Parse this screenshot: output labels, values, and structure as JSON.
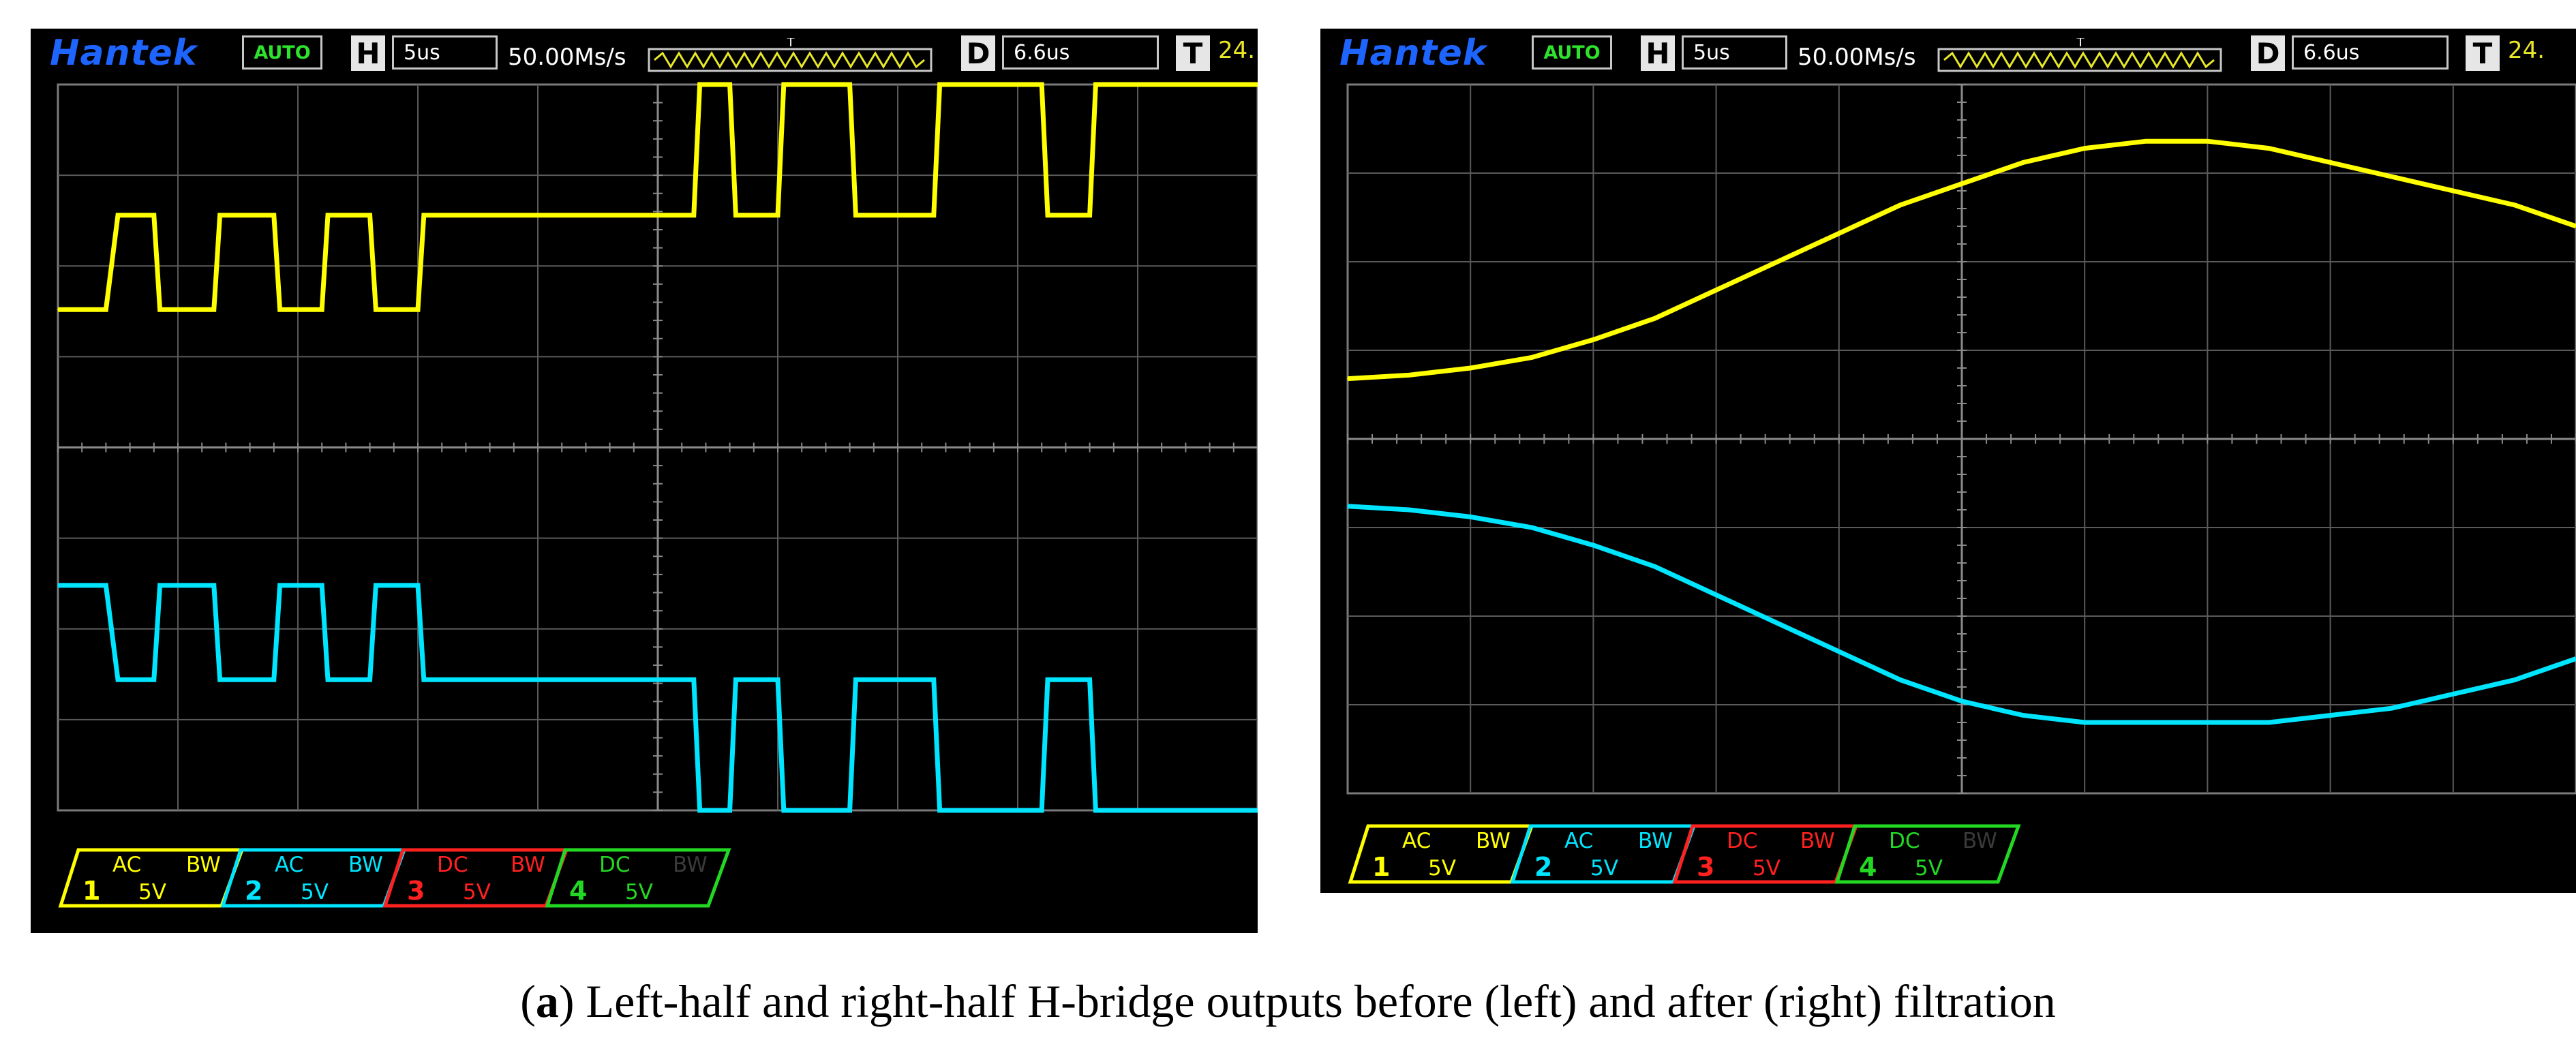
{
  "scopes": [
    {
      "brand": "Hantek",
      "mode": "AUTO",
      "h_letter": "H",
      "h_value": "5us",
      "sample_rate": "50.00Ms/s",
      "trigger_marker": "T",
      "d_letter": "D",
      "d_value": "6.6us",
      "t_letter": "T",
      "t_value": "24.",
      "channels": [
        {
          "num": "1",
          "coupling": "AC",
          "bw": "BW",
          "volts": "5V",
          "color": "#ffff00"
        },
        {
          "num": "2",
          "coupling": "AC",
          "bw": "BW",
          "volts": "5V",
          "color": "#00e5ff"
        },
        {
          "num": "3",
          "coupling": "DC",
          "bw": "BW",
          "volts": "5V",
          "color": "#ff2020"
        },
        {
          "num": "4",
          "coupling": "DC",
          "bw": "BW",
          "volts": "5V",
          "color": "#22d822"
        }
      ]
    },
    {
      "brand": "Hantek",
      "mode": "AUTO",
      "h_letter": "H",
      "h_value": "5us",
      "sample_rate": "50.00Ms/s",
      "trigger_marker": "T",
      "d_letter": "D",
      "d_value": "6.6us",
      "t_letter": "T",
      "t_value": "24.",
      "channels": [
        {
          "num": "1",
          "coupling": "AC",
          "bw": "BW",
          "volts": "5V",
          "color": "#ffff00"
        },
        {
          "num": "2",
          "coupling": "AC",
          "bw": "BW",
          "volts": "5V",
          "color": "#00e5ff"
        },
        {
          "num": "3",
          "coupling": "DC",
          "bw": "BW",
          "volts": "5V",
          "color": "#ff2020"
        },
        {
          "num": "4",
          "coupling": "DC",
          "bw": "BW",
          "volts": "5V",
          "color": "#22d822"
        }
      ]
    }
  ],
  "chart_data": [
    {
      "type": "line",
      "title": "",
      "grid": true,
      "xlim": [
        0,
        1
      ],
      "ylim": [
        0,
        1
      ],
      "series": [
        {
          "color": "#ffff00",
          "x": [
            0.0,
            0.04,
            0.05,
            0.08,
            0.085,
            0.13,
            0.135,
            0.18,
            0.185,
            0.22,
            0.225,
            0.26,
            0.265,
            0.3,
            0.305,
            0.322,
            0.33,
            0.41,
            0.415,
            0.43,
            0.435,
            0.53,
            0.535,
            0.56,
            0.565,
            0.6,
            0.605,
            0.66,
            0.665,
            0.73,
            0.735,
            0.82,
            0.825,
            0.86,
            0.865,
            1.0
          ],
          "y": [
            0.69,
            0.69,
            0.82,
            0.82,
            0.69,
            0.69,
            0.82,
            0.82,
            0.69,
            0.69,
            0.82,
            0.82,
            0.69,
            0.69,
            0.82,
            0.82,
            0.82,
            0.82,
            0.82,
            0.82,
            0.82,
            0.82,
            1.0,
            1.0,
            0.82,
            0.82,
            1.0,
            1.0,
            0.82,
            0.82,
            1.0,
            1.0,
            0.82,
            0.82,
            1.0,
            1.0
          ]
        },
        {
          "color": "#00e5ff",
          "x": [
            0.0,
            0.04,
            0.05,
            0.08,
            0.085,
            0.13,
            0.135,
            0.18,
            0.185,
            0.22,
            0.225,
            0.26,
            0.265,
            0.3,
            0.305,
            0.322,
            0.33,
            0.41,
            0.415,
            0.43,
            0.435,
            0.53,
            0.535,
            0.56,
            0.565,
            0.6,
            0.605,
            0.66,
            0.665,
            0.73,
            0.735,
            0.82,
            0.825,
            0.86,
            0.865,
            1.0
          ],
          "y": [
            0.31,
            0.31,
            0.18,
            0.18,
            0.31,
            0.31,
            0.18,
            0.18,
            0.31,
            0.31,
            0.18,
            0.18,
            0.31,
            0.31,
            0.18,
            0.18,
            0.18,
            0.18,
            0.18,
            0.18,
            0.18,
            0.18,
            0.0,
            0.0,
            0.18,
            0.18,
            0.0,
            0.0,
            0.18,
            0.18,
            0.0,
            0.0,
            0.18,
            0.18,
            0.0,
            0.0
          ]
        }
      ]
    },
    {
      "type": "line",
      "title": "",
      "grid": true,
      "xlim": [
        0,
        1
      ],
      "ylim": [
        0,
        1
      ],
      "series": [
        {
          "color": "#ffff00",
          "x": [
            0.0,
            0.05,
            0.1,
            0.15,
            0.2,
            0.25,
            0.3,
            0.35,
            0.4,
            0.45,
            0.5,
            0.55,
            0.6,
            0.65,
            0.7,
            0.75,
            0.8,
            0.85,
            0.9,
            0.95,
            1.0
          ],
          "y": [
            0.585,
            0.59,
            0.6,
            0.615,
            0.64,
            0.67,
            0.71,
            0.75,
            0.79,
            0.83,
            0.86,
            0.89,
            0.91,
            0.92,
            0.92,
            0.91,
            0.89,
            0.87,
            0.85,
            0.83,
            0.8
          ]
        },
        {
          "color": "#00e5ff",
          "x": [
            0.0,
            0.05,
            0.1,
            0.15,
            0.2,
            0.25,
            0.3,
            0.35,
            0.4,
            0.45,
            0.5,
            0.55,
            0.6,
            0.65,
            0.7,
            0.75,
            0.8,
            0.85,
            0.9,
            0.95,
            1.0
          ],
          "y": [
            0.405,
            0.4,
            0.39,
            0.375,
            0.35,
            0.32,
            0.28,
            0.24,
            0.2,
            0.16,
            0.13,
            0.11,
            0.1,
            0.1,
            0.1,
            0.1,
            0.11,
            0.12,
            0.14,
            0.16,
            0.19
          ]
        }
      ]
    }
  ],
  "caption": {
    "bold": "a",
    "open": "(",
    "close": ")",
    "text": " Left-half and right-half H-bridge outputs before (left) and after (right) filtration"
  }
}
